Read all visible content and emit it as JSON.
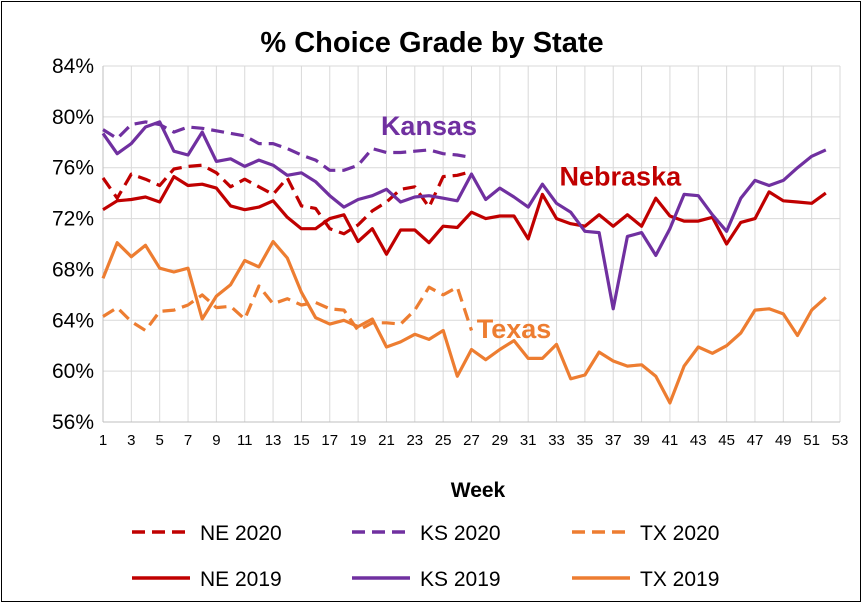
{
  "chart_data": {
    "type": "line",
    "title": "% Choice Grade by State",
    "xlabel": "Week",
    "ylabel": "",
    "ylim": [
      56,
      84
    ],
    "yticks": [
      56,
      60,
      64,
      68,
      72,
      76,
      80,
      84
    ],
    "ytick_labels": [
      "56%",
      "60%",
      "64%",
      "68%",
      "72%",
      "76%",
      "80%",
      "84%"
    ],
    "xlim": [
      1,
      53
    ],
    "xticks": [
      1,
      3,
      5,
      7,
      9,
      11,
      13,
      15,
      17,
      19,
      21,
      23,
      25,
      27,
      29,
      31,
      33,
      35,
      37,
      39,
      41,
      43,
      45,
      47,
      49,
      51,
      53
    ],
    "grid": true,
    "legend_position": "bottom",
    "annotations": [
      {
        "text": "Kansas",
        "x": 24,
        "y": 79.3,
        "color": "#7030A0"
      },
      {
        "text": "Nebraska",
        "x": 37.5,
        "y": 75.3,
        "color": "#C00000"
      },
      {
        "text": "Texas",
        "x": 30,
        "y": 63.3,
        "color": "#ED7D31"
      }
    ],
    "series": [
      {
        "name": "NE 2020",
        "color": "#C00000",
        "dash": true,
        "x_start": 1,
        "values": [
          75.2,
          73.6,
          75.5,
          75.1,
          74.6,
          75.9,
          76.1,
          76.2,
          75.6,
          74.5,
          75.1,
          74.5,
          73.9,
          75.2,
          73.0,
          72.8,
          71.2,
          70.8,
          71.5,
          72.6,
          73.3,
          74.3,
          74.5,
          72.9,
          75.3,
          75.4,
          75.7
        ]
      },
      {
        "name": "KS 2020",
        "color": "#7030A0",
        "dash": true,
        "x_start": 1,
        "values": [
          79.0,
          78.3,
          79.4,
          79.6,
          79.4,
          78.8,
          79.2,
          79.1,
          78.9,
          78.7,
          78.5,
          77.9,
          77.9,
          77.5,
          77.0,
          76.6,
          75.8,
          75.8,
          76.2,
          77.5,
          77.2,
          77.2,
          77.3,
          77.4,
          77.1,
          77.0,
          76.8
        ]
      },
      {
        "name": "TX 2020",
        "color": "#ED7D31",
        "dash": true,
        "x_start": 1,
        "values": [
          64.3,
          65.0,
          63.9,
          63.2,
          64.7,
          64.8,
          65.2,
          66.0,
          65.0,
          65.1,
          64.1,
          66.7,
          65.3,
          65.7,
          65.2,
          65.4,
          64.9,
          64.8,
          63.2,
          63.8,
          63.8,
          63.7,
          64.8,
          66.6,
          66.0,
          66.6,
          63.2
        ]
      },
      {
        "name": "NE 2019",
        "color": "#C00000",
        "dash": false,
        "x_start": 1,
        "values": [
          72.7,
          73.4,
          73.5,
          73.7,
          73.3,
          75.3,
          74.6,
          74.7,
          74.4,
          73.0,
          72.7,
          72.9,
          73.4,
          72.1,
          71.2,
          71.2,
          72.0,
          72.3,
          70.2,
          71.2,
          69.2,
          71.1,
          71.1,
          70.1,
          71.4,
          71.3,
          72.5,
          72.0,
          72.2,
          72.2,
          70.4,
          73.9,
          72.0,
          71.6,
          71.4,
          72.3,
          71.4,
          72.3,
          71.4,
          73.6,
          72.2,
          71.8,
          71.8,
          72.1,
          70.0,
          71.7,
          72.0,
          74.1,
          73.4,
          73.3,
          73.2,
          74.0
        ]
      },
      {
        "name": "KS 2019",
        "color": "#7030A0",
        "dash": false,
        "x_start": 1,
        "values": [
          78.7,
          77.1,
          77.9,
          79.2,
          79.6,
          77.3,
          77.0,
          78.8,
          76.5,
          76.7,
          76.1,
          76.6,
          76.2,
          75.4,
          75.6,
          74.9,
          73.8,
          72.9,
          73.5,
          73.8,
          74.3,
          73.3,
          73.7,
          73.8,
          73.6,
          73.4,
          75.5,
          73.5,
          74.4,
          73.7,
          72.9,
          74.7,
          73.2,
          72.5,
          71.0,
          70.9,
          64.9,
          70.6,
          70.9,
          69.1,
          71.2,
          73.9,
          73.8,
          72.3,
          71.0,
          73.6,
          75.0,
          74.6,
          75.0,
          76.0,
          76.9,
          77.4
        ]
      },
      {
        "name": "TX 2019",
        "color": "#ED7D31",
        "dash": false,
        "x_start": 1,
        "values": [
          67.3,
          70.1,
          69.0,
          69.9,
          68.1,
          67.8,
          68.1,
          64.1,
          65.9,
          66.8,
          68.7,
          68.2,
          70.2,
          68.9,
          66.2,
          64.2,
          63.7,
          64.0,
          63.5,
          64.1,
          61.9,
          62.3,
          62.9,
          62.5,
          63.2,
          59.6,
          61.7,
          60.9,
          61.7,
          62.4,
          61.0,
          61.0,
          62.1,
          59.4,
          59.7,
          61.5,
          60.8,
          60.4,
          60.5,
          59.6,
          57.5,
          60.4,
          61.9,
          61.4,
          62.0,
          63.0,
          64.8,
          64.9,
          64.5,
          62.8,
          64.8,
          65.8
        ]
      }
    ]
  }
}
